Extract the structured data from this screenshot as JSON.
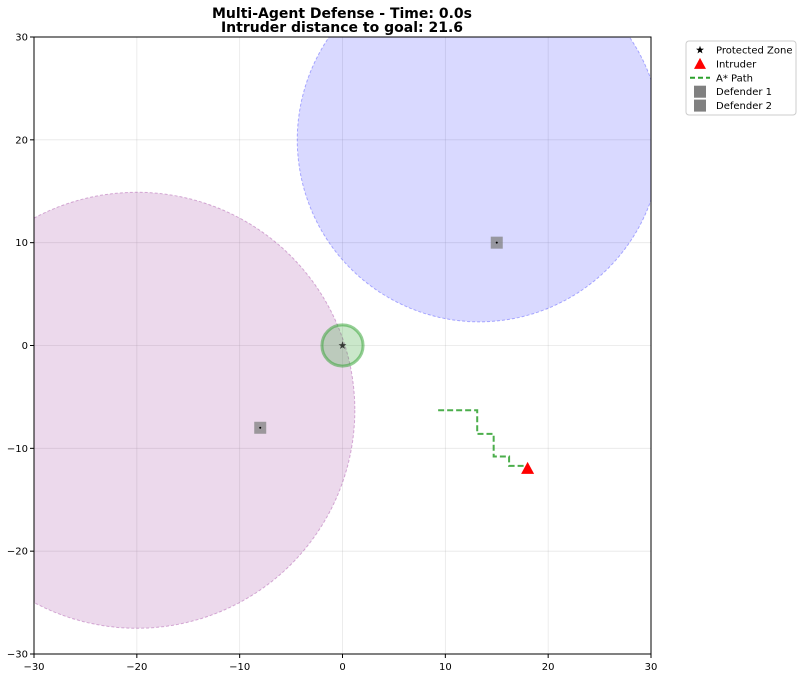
{
  "chart_data": {
    "type": "scatter",
    "title_line1": "Multi-Agent Defense - Time: 0.0s",
    "title_line2": "Intruder distance to goal: 21.6",
    "xlabel": "",
    "ylabel": "",
    "xlim": [
      -30,
      30
    ],
    "ylim": [
      -30,
      30
    ],
    "xticks": [
      -30,
      -20,
      -10,
      0,
      10,
      20,
      30
    ],
    "yticks": [
      -30,
      -20,
      -10,
      0,
      10,
      20,
      30
    ],
    "xtick_labels": [
      "−30",
      "−20",
      "−10",
      "0",
      "10",
      "20",
      "30"
    ],
    "ytick_labels": [
      "−30",
      "−20",
      "−10",
      "0",
      "10",
      "20",
      "30"
    ],
    "grid": true,
    "legend_position": "outside-top-right",
    "legend": [
      {
        "label": "Protected Zone",
        "marker": "star",
        "color": "#000000"
      },
      {
        "label": "Intruder",
        "marker": "triangle",
        "color": "#ff0000"
      },
      {
        "label": "A* Path",
        "marker": "dashed-line",
        "color": "#2ca02c"
      },
      {
        "label": "Defender 1",
        "marker": "square",
        "color": "#808080"
      },
      {
        "label": "Defender 2",
        "marker": "square",
        "color": "#808080"
      }
    ],
    "zones": [
      {
        "name": "defender-2-range",
        "cx": -20,
        "cy": -6.3,
        "r": 21.2,
        "color": "#800080"
      },
      {
        "name": "defender-1-range",
        "cx": 13.3,
        "cy": 20.0,
        "r": 17.7,
        "color": "#0000ff"
      },
      {
        "name": "protected-zone-area",
        "cx": 0,
        "cy": 0,
        "r": 2.0,
        "color": "#2ca02c"
      }
    ],
    "protected_zone": {
      "x": 0,
      "y": 0
    },
    "intruder": {
      "x": 18,
      "y": -12
    },
    "defenders": [
      {
        "name": "Defender 1",
        "x": 15,
        "y": 10
      },
      {
        "name": "Defender 2",
        "x": -8,
        "y": -8
      }
    ],
    "astar_path": [
      {
        "x": 9.3,
        "y": -6.3
      },
      {
        "x": 13.1,
        "y": -6.3
      },
      {
        "x": 13.1,
        "y": -8.6
      },
      {
        "x": 14.7,
        "y": -8.6
      },
      {
        "x": 14.7,
        "y": -10.8
      },
      {
        "x": 16.2,
        "y": -10.8
      },
      {
        "x": 16.2,
        "y": -11.7
      },
      {
        "x": 18,
        "y": -11.7
      }
    ]
  }
}
